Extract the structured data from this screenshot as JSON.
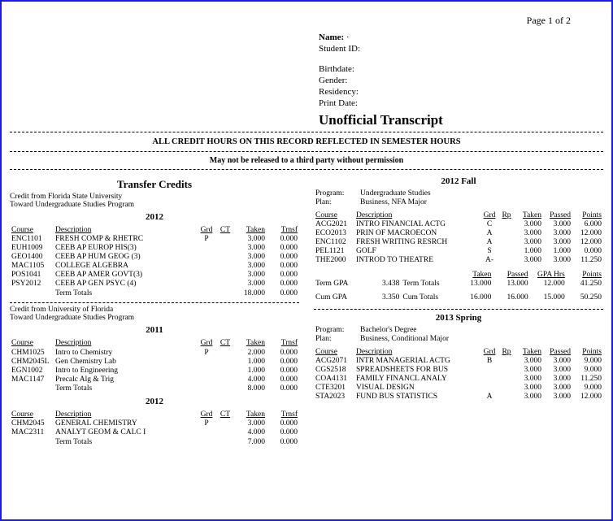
{
  "page_label": "Page 1 of 2",
  "header": {
    "name_label": "Name:",
    "name_value": "·",
    "id_label": "Student ID:",
    "birth_label": "Birthdate:",
    "gender_label": "Gender:",
    "res_label": "Residency:",
    "print_label": "Print Date:",
    "title": "Unofficial Transcript"
  },
  "banner1": "ALL CREDIT HOURS ON THIS RECORD REFLECTED IN SEMESTER HOURS",
  "banner2": "May not be released to a third party without permission",
  "left": {
    "title": "Transfer Credits",
    "src1": "Credit from Florida State University",
    "dst1": "Toward Undergraduate Studies Program",
    "term1": "2012",
    "cols": {
      "course": "Course",
      "desc": "Description",
      "grd": "Grd",
      "ct": "CT",
      "taken": "Taken",
      "trnsf": "Trnsf"
    },
    "t1": [
      {
        "c": "ENC1101",
        "d": "FRESH COMP & RHETRC",
        "g": "P",
        "ct": "",
        "tk": "3.000",
        "tr": "0.000"
      },
      {
        "c": "EUH1009",
        "d": "CEEB AP EUROP HIS(3)",
        "g": "",
        "ct": "",
        "tk": "3.000",
        "tr": "0.000"
      },
      {
        "c": "GEO1400",
        "d": "CEEB AP HUM GEOG (3)",
        "g": "",
        "ct": "",
        "tk": "3.000",
        "tr": "0.000"
      },
      {
        "c": "MAC1105",
        "d": "COLLEGE ALGEBRA",
        "g": "",
        "ct": "",
        "tk": "3.000",
        "tr": "0.000"
      },
      {
        "c": "POS1041",
        "d": "CEEB AP AMER GOVT(3)",
        "g": "",
        "ct": "",
        "tk": "3.000",
        "tr": "0.000"
      },
      {
        "c": "PSY2012",
        "d": "CEEB AP GEN PSYC (4)",
        "g": "",
        "ct": "",
        "tk": "3.000",
        "tr": "0.000"
      }
    ],
    "t1_total_label": "Term Totals",
    "t1_total_tk": "18.000",
    "t1_total_tr": "0.000",
    "src2": "Credit from University of Florida",
    "dst2": "Toward Undergraduate Studies Program",
    "term2": "2011",
    "t2": [
      {
        "c": "CHM1025",
        "d": "Intro to Chemistry",
        "g": "P",
        "ct": "",
        "tk": "2.000",
        "tr": "0.000"
      },
      {
        "c": "CHM2045L",
        "d": "Gen Chemistry Lab",
        "g": "",
        "ct": "",
        "tk": "1.000",
        "tr": "0.000"
      },
      {
        "c": "EGN1002",
        "d": "Intro to Engineering",
        "g": "",
        "ct": "",
        "tk": "1.000",
        "tr": "0.000"
      },
      {
        "c": "MAC1147",
        "d": "Precalc Alg & Trig",
        "g": "",
        "ct": "",
        "tk": "4.000",
        "tr": "0.000"
      }
    ],
    "t2_total_tk": "8.000",
    "t2_total_tr": "0.000",
    "term3": "2012",
    "t3": [
      {
        "c": "CHM2045",
        "d": "GENERAL CHEMISTRY",
        "g": "P",
        "ct": "",
        "tk": "3.000",
        "tr": "0.000"
      },
      {
        "c": "MAC2311",
        "d": "ANALYT GEOM & CALC I",
        "g": "",
        "ct": "",
        "tk": "4.000",
        "tr": "0.000"
      }
    ],
    "t3_total_tk": "7.000",
    "t3_total_tr": "0.000"
  },
  "right": {
    "term1": "2012 Fall",
    "kv1": {
      "program_l": "Program:",
      "program_v": "Undergraduate Studies",
      "plan_l": "Plan:",
      "plan_v": "Business, NFA Major"
    },
    "cols": {
      "course": "Course",
      "desc": "Description",
      "grd": "Grd",
      "rp": "Rp",
      "taken": "Taken",
      "passed": "Passed",
      "points": "Points"
    },
    "t1": [
      {
        "c": "ACG2021",
        "d": "INTRO FINANCIAL ACTG",
        "g": "C",
        "tk": "3.000",
        "pa": "3.000",
        "pt": "6.000"
      },
      {
        "c": "ECO2013",
        "d": "PRIN OF MACROECON",
        "g": "A",
        "tk": "3.000",
        "pa": "3.000",
        "pt": "12.000"
      },
      {
        "c": "ENC1102",
        "d": "FRESH WRITING RESRCH",
        "g": "A",
        "tk": "3.000",
        "pa": "3.000",
        "pt": "12.000"
      },
      {
        "c": "PEL1121",
        "d": "GOLF",
        "g": "S",
        "tk": "1.000",
        "pa": "1.000",
        "pt": "0.000"
      },
      {
        "c": "THE2000",
        "d": "INTROD TO THEATRE",
        "g": "A-",
        "tk": "3.000",
        "pa": "3.000",
        "pt": "11.250"
      }
    ],
    "sum_cols": {
      "taken": "Taken",
      "passed": "Passed",
      "gpahrs": "GPA Hrs",
      "points": "Points"
    },
    "termgpa_l": "Term GPA",
    "termgpa_v": "3.438",
    "termtot_l": "Term Totals",
    "tt_taken": "13.000",
    "tt_passed": "13.000",
    "tt_gpa": "12.000",
    "tt_pts": "41.250",
    "cumgpa_l": "Cum GPA",
    "cumgpa_v": "3.350",
    "cumtot_l": "Cum Totals",
    "ct_taken": "16.000",
    "ct_passed": "16.000",
    "ct_gpa": "15.000",
    "ct_pts": "50.250",
    "term2": "2013 Spring",
    "kv2": {
      "program_l": "Program:",
      "program_v": "Bachelor's Degree",
      "plan_l": "Plan:",
      "plan_v": "Business, Conditional Major"
    },
    "t2": [
      {
        "c": "ACG2071",
        "d": "INTR MANAGERIAL ACTG",
        "g": "B",
        "tk": "3.000",
        "pa": "3.000",
        "pt": "9.000"
      },
      {
        "c": "CGS2518",
        "d": "SPREADSHEETS FOR BUS",
        "g": "",
        "tk": "3.000",
        "pa": "3.000",
        "pt": "9.000"
      },
      {
        "c": "COA4131",
        "d": "FAMILY FINANCL ANALY",
        "g": "",
        "tk": "3.000",
        "pa": "3.000",
        "pt": "11.250"
      },
      {
        "c": "CTE3201",
        "d": "VISUAL DESIGN",
        "g": "",
        "tk": "3.000",
        "pa": "3.000",
        "pt": "9.000"
      },
      {
        "c": "STA2023",
        "d": "FUND BUS STATISTICS",
        "g": "A",
        "tk": "3.000",
        "pa": "3.000",
        "pt": "12.000"
      }
    ]
  }
}
